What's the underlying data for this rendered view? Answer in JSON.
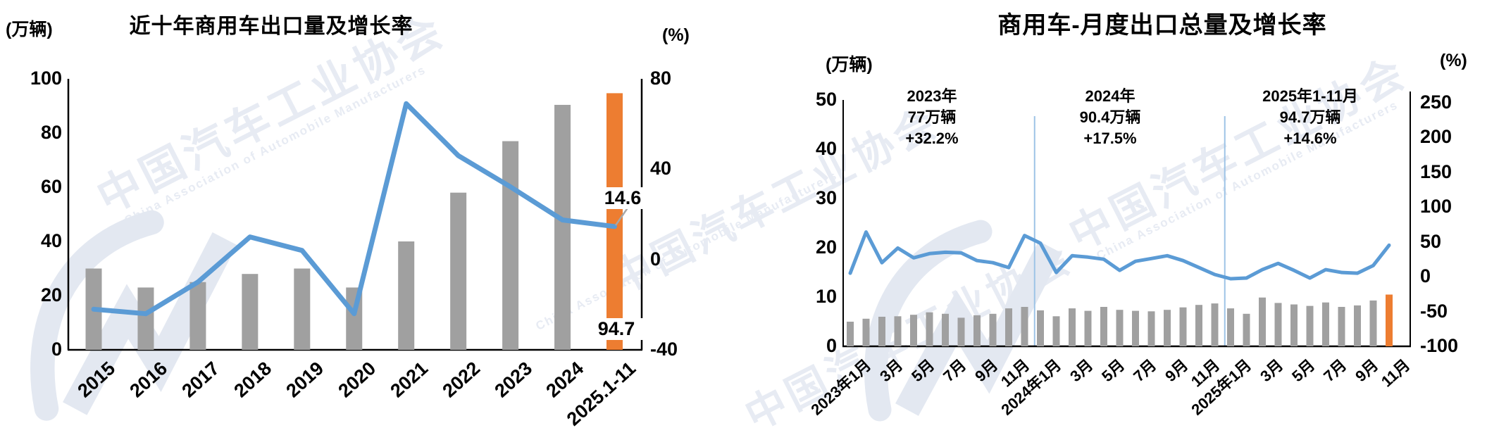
{
  "watermark": {
    "cn": "中国汽车工业协会",
    "en": "China Association of Automobile Manufacturers"
  },
  "colors": {
    "bar_gray": "#A0A0A0",
    "bar_orange": "#ED7D31",
    "line_blue": "#5B9BD5",
    "divider_blue": "#9DC3E6",
    "axis_black": "#000000",
    "leader_gray": "#A6A6A6",
    "watermark_text": "#E7EBF3",
    "watermark_logo": "#E3E8F1"
  },
  "chart_data": [
    {
      "type": "bar+line",
      "title": "近十年商用车出口量及增长率",
      "unit_left": "(万辆)",
      "unit_right": "(%)",
      "categories": [
        "2015",
        "2016",
        "2017",
        "2018",
        "2019",
        "2020",
        "2021",
        "2022",
        "2023",
        "2024",
        "2025.1-11"
      ],
      "series": [
        {
          "name": "出口量(万辆)",
          "type": "bar",
          "axis": "left",
          "highlight_last": true,
          "values": [
            30,
            23,
            25,
            28,
            30,
            23,
            40,
            58,
            77,
            90.4,
            94.7
          ]
        },
        {
          "name": "增长率(%)",
          "type": "line",
          "axis": "right",
          "values": [
            -22,
            -24,
            -10,
            10,
            4,
            -24,
            69,
            46,
            32.2,
            17.5,
            14.6
          ]
        }
      ],
      "ylim_left": [
        0,
        100
      ],
      "yticks_left": [
        0,
        20,
        40,
        60,
        80,
        100
      ],
      "ylim_right": [
        -40,
        80
      ],
      "yticks_right": [
        -40,
        0,
        40,
        80
      ],
      "grid": false,
      "legend": "none",
      "callout_line_end": "14.6",
      "callout_bar": "94.7"
    },
    {
      "type": "bar+line",
      "title": "商用车-月度出口总量及增长率",
      "unit_left": "(万辆)",
      "unit_right": "(%)",
      "n_months": 35,
      "x_tick_labels": [
        {
          "i": 0,
          "label": "2023年1月"
        },
        {
          "i": 2,
          "label": "3月"
        },
        {
          "i": 4,
          "label": "5月"
        },
        {
          "i": 6,
          "label": "7月"
        },
        {
          "i": 8,
          "label": "9月"
        },
        {
          "i": 10,
          "label": "11月"
        },
        {
          "i": 12,
          "label": "2024年1月"
        },
        {
          "i": 14,
          "label": "3月"
        },
        {
          "i": 16,
          "label": "5月"
        },
        {
          "i": 18,
          "label": "7月"
        },
        {
          "i": 20,
          "label": "9月"
        },
        {
          "i": 22,
          "label": "11月"
        },
        {
          "i": 24,
          "label": "2025年1月"
        },
        {
          "i": 26,
          "label": "3月"
        },
        {
          "i": 28,
          "label": "5月"
        },
        {
          "i": 30,
          "label": "7月"
        },
        {
          "i": 32,
          "label": "9月"
        },
        {
          "i": 34,
          "label": "11月"
        }
      ],
      "series": [
        {
          "name": "月度出口量(万辆)",
          "type": "bar",
          "axis": "left",
          "highlight_last": true,
          "values": [
            5.0,
            5.6,
            6.0,
            6.1,
            6.4,
            6.9,
            6.6,
            5.8,
            6.3,
            6.6,
            7.7,
            8.0,
            7.3,
            6.1,
            7.7,
            7.2,
            8.0,
            7.4,
            7.2,
            7.1,
            7.4,
            7.9,
            8.4,
            8.7,
            7.7,
            6.6,
            9.9,
            8.8,
            8.5,
            8.2,
            8.9,
            8.0,
            8.3,
            9.3,
            10.5
          ]
        },
        {
          "name": "增长率(%)",
          "type": "line",
          "axis": "right",
          "values": [
            5,
            64,
            20,
            41,
            27,
            33,
            35,
            34,
            23,
            20,
            13,
            59,
            48,
            6,
            30,
            28,
            25,
            9,
            22,
            26,
            30,
            23,
            13,
            3,
            -3,
            -2,
            10,
            19,
            9,
            -2,
            10,
            6,
            5,
            16,
            45
          ]
        }
      ],
      "ylim_left": [
        0,
        50
      ],
      "yticks_left": [
        0,
        10,
        20,
        30,
        40,
        50
      ],
      "ylim_right": [
        -100,
        250
      ],
      "yticks_right": [
        -100,
        -50,
        0,
        50,
        100,
        150,
        200,
        250
      ],
      "grid": false,
      "legend": "none",
      "year_dividers_after_index": [
        11,
        23
      ],
      "annotations": [
        {
          "lines": [
            "2023年",
            "77万辆",
            "+32.2%"
          ]
        },
        {
          "lines": [
            "2024年",
            "90.4万辆",
            "+17.5%"
          ]
        },
        {
          "lines": [
            "2025年1-11月",
            "94.7万辆",
            "+14.6%"
          ]
        }
      ]
    }
  ]
}
